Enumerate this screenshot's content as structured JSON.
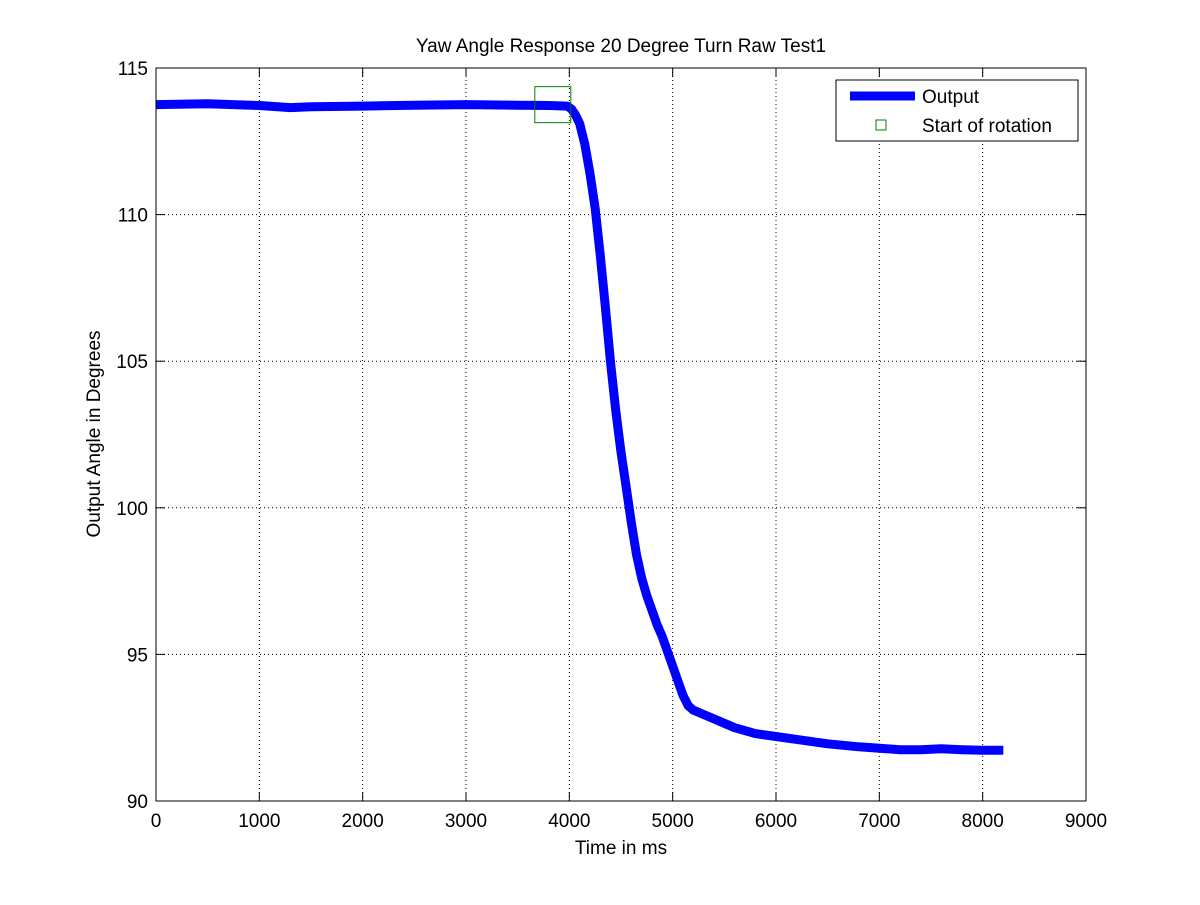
{
  "chart_data": {
    "type": "line",
    "title": "Yaw Angle Response 20 Degree Turn Raw Test1",
    "xlabel": "Time in ms",
    "ylabel": "Output Angle in Degrees",
    "xlim": [
      0,
      9000
    ],
    "ylim": [
      90,
      115
    ],
    "xticks": [
      0,
      1000,
      2000,
      3000,
      4000,
      5000,
      6000,
      7000,
      8000,
      9000
    ],
    "yticks": [
      90,
      95,
      100,
      105,
      110,
      115
    ],
    "grid": true,
    "legend_position": "top-right",
    "series": [
      {
        "name": "Output",
        "color": "#0000ff",
        "style": "line",
        "x": [
          0,
          500,
          1000,
          1300,
          1500,
          2000,
          2500,
          3000,
          3500,
          3800,
          3980,
          4020,
          4060,
          4100,
          4150,
          4200,
          4250,
          4300,
          4350,
          4400,
          4450,
          4500,
          4550,
          4600,
          4650,
          4700,
          4750,
          4800,
          4850,
          4900,
          4950,
          5000,
          5050,
          5100,
          5150,
          5200,
          5300,
          5400,
          5500,
          5600,
          5800,
          6000,
          6200,
          6500,
          6800,
          7000,
          7200,
          7400,
          7600,
          7800,
          8000,
          8200
        ],
        "y": [
          113.75,
          113.78,
          113.72,
          113.65,
          113.68,
          113.7,
          113.73,
          113.75,
          113.73,
          113.72,
          113.7,
          113.6,
          113.4,
          113.1,
          112.4,
          111.4,
          110.2,
          108.6,
          106.8,
          104.9,
          103.3,
          101.9,
          100.7,
          99.5,
          98.4,
          97.6,
          97.0,
          96.5,
          96.0,
          95.6,
          95.1,
          94.6,
          94.1,
          93.6,
          93.25,
          93.1,
          92.95,
          92.8,
          92.65,
          92.5,
          92.3,
          92.2,
          92.1,
          91.95,
          91.85,
          91.8,
          91.75,
          91.75,
          91.78,
          91.75,
          91.73,
          91.73
        ]
      },
      {
        "name": "Start of rotation",
        "color": "#008000",
        "style": "square-marker",
        "x": [
          3840
        ],
        "y": [
          113.75
        ]
      }
    ]
  }
}
